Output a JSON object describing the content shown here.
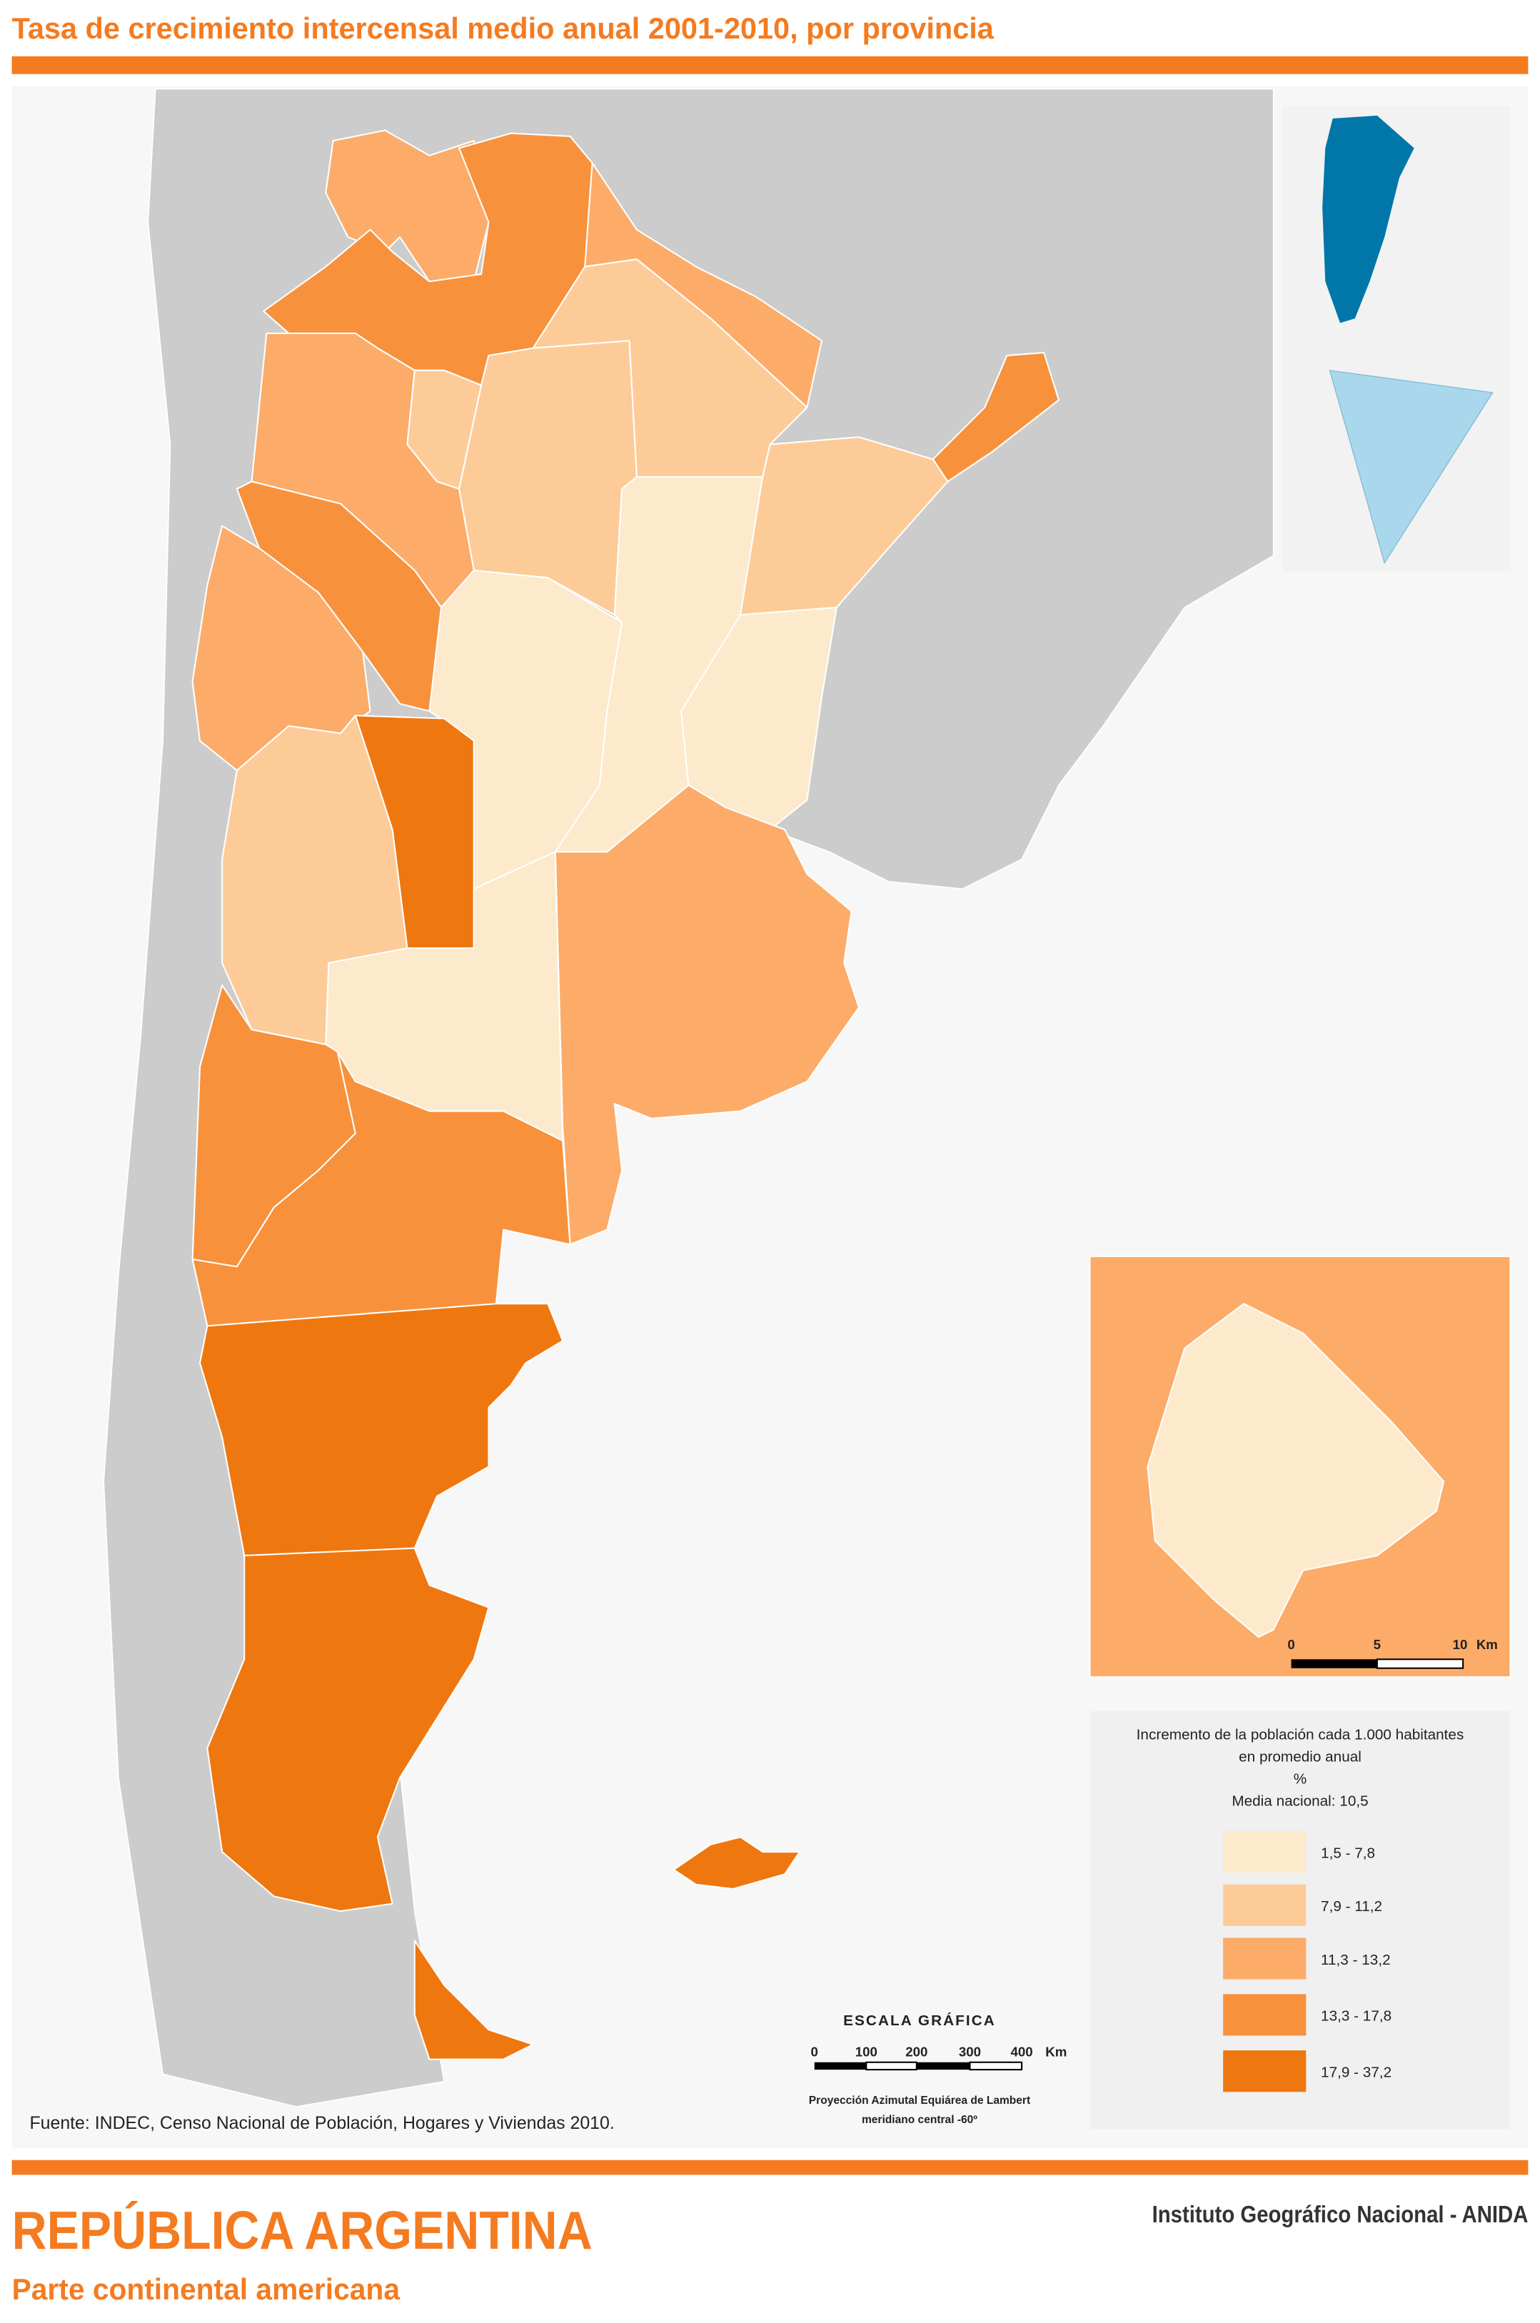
{
  "title": "Tasa de crecimiento intercensal medio anual 2001-2010, por provincia",
  "legend": {
    "title_lines": [
      "Incremento de la población cada 1.000 habitantes",
      "en promedio anual",
      "%",
      "Media nacional: 10,5"
    ],
    "classes": [
      {
        "label": "1,5 - 7,8",
        "color": "#fde9cc"
      },
      {
        "label": "7,9 - 11,2",
        "color": "#fdcb98"
      },
      {
        "label": "11,3 - 13,2",
        "color": "#fcab68"
      },
      {
        "label": "13,3 - 17,8",
        "color": "#f8913c"
      },
      {
        "label": "17,9 - 37,2",
        "color": "#ef770f"
      }
    ]
  },
  "scale_bar": {
    "title": "ESCALA GRÁFICA",
    "ticks": [
      "0",
      "100",
      "200",
      "300",
      "400"
    ],
    "unit": "Km"
  },
  "inset_scale_bar": {
    "ticks": [
      "0",
      "5",
      "10"
    ],
    "unit": "Km"
  },
  "projection": [
    "Proyección Azimutal Equiárea de Lambert",
    "meridiano central -60º"
  ],
  "source": "Fuente: INDEC, Censo Nacional de Población, Hogares y Viviendas 2010.",
  "footer": {
    "title": "REPÚBLICA ARGENTINA",
    "subtitle": "Parte continental americana",
    "credit": "Instituto Geográfico Nacional - ANIDA"
  }
}
